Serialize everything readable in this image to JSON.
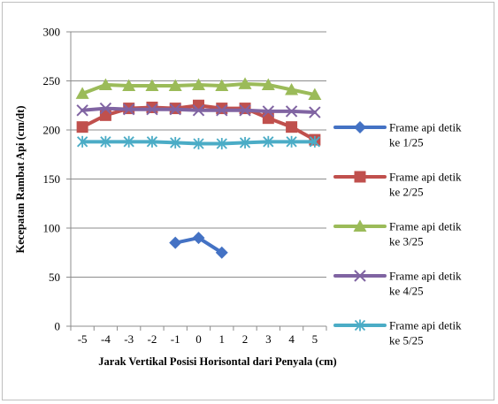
{
  "chart_data": {
    "type": "line",
    "title": "",
    "xlabel": "Jarak Vertikal Posisi Horisontal dari Penyala (cm)",
    "ylabel": "Kecepatan Rambat Api (cm/dt)",
    "ylim": [
      0,
      300
    ],
    "yticks": [
      0,
      50,
      100,
      150,
      200,
      250,
      300
    ],
    "categories": [
      "-5",
      "-4",
      "-3",
      "-2",
      "-1",
      "0",
      "1",
      "2",
      "3",
      "4",
      "5"
    ],
    "grid": "horizontal",
    "legend_position": "right",
    "series": [
      {
        "name_lines": [
          "Frame api detik",
          "ke 1/25"
        ],
        "color": "#4472c4",
        "marker": "diamond",
        "values": [
          null,
          null,
          null,
          null,
          85,
          90,
          75,
          null,
          null,
          null,
          null
        ]
      },
      {
        "name_lines": [
          "Frame api detik",
          "ke 2/25"
        ],
        "color": "#c0504d",
        "marker": "square",
        "values": [
          203,
          215,
          222,
          223,
          222,
          225,
          222,
          222,
          212,
          203,
          190
        ]
      },
      {
        "name_lines": [
          "Frame api detik",
          "ke 3/25"
        ],
        "color": "#9bbb59",
        "marker": "triangle",
        "values": [
          237,
          246,
          245,
          245,
          245,
          246,
          245,
          247,
          246,
          241,
          236
        ]
      },
      {
        "name_lines": [
          "Frame api detik",
          "ke 4/25"
        ],
        "color": "#8064a2",
        "marker": "x",
        "values": [
          220,
          222,
          221,
          221,
          221,
          220,
          220,
          220,
          219,
          219,
          218
        ]
      },
      {
        "name_lines": [
          "Frame api detik",
          "ke 5/25"
        ],
        "color": "#4bacc6",
        "marker": "star",
        "values": [
          188,
          188,
          188,
          188,
          187,
          186,
          186,
          187,
          188,
          188,
          188
        ]
      }
    ]
  }
}
